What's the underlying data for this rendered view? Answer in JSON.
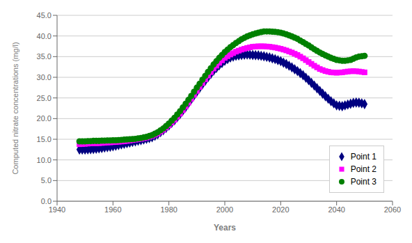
{
  "chart_data": {
    "type": "scatter",
    "title": "",
    "xlabel": "Years",
    "ylabel": "Computed nitrate concentrations (mg/l)",
    "xlim": [
      1940,
      2060
    ],
    "ylim": [
      0.0,
      45.0
    ],
    "xticks": [
      1940,
      1960,
      1980,
      2000,
      2020,
      2040,
      2060
    ],
    "yticks": [
      {
        "value": 0.0,
        "label": "0.0"
      },
      {
        "value": 5.0,
        "label": "5.0"
      },
      {
        "value": 10.0,
        "label": "10.0"
      },
      {
        "value": 15.0,
        "label": "15.0"
      },
      {
        "value": 20.0,
        "label": "20.0"
      },
      {
        "value": 25.0,
        "label": "25.0"
      },
      {
        "value": 30.0,
        "label": "30.0"
      },
      {
        "value": 35.0,
        "label": "35.0"
      },
      {
        "value": 40.0,
        "label": "40.0"
      },
      {
        "value": 45.0,
        "label": "45.0"
      }
    ],
    "grid": "y",
    "legend": "lower right",
    "x": [
      1948,
      1949,
      1950,
      1951,
      1952,
      1953,
      1954,
      1955,
      1956,
      1957,
      1958,
      1959,
      1960,
      1961,
      1962,
      1963,
      1964,
      1965,
      1966,
      1967,
      1968,
      1969,
      1970,
      1971,
      1972,
      1973,
      1974,
      1975,
      1976,
      1977,
      1978,
      1979,
      1980,
      1981,
      1982,
      1983,
      1984,
      1985,
      1986,
      1987,
      1988,
      1989,
      1990,
      1991,
      1992,
      1993,
      1994,
      1995,
      1996,
      1997,
      1998,
      1999,
      2000,
      2001,
      2002,
      2003,
      2004,
      2005,
      2006,
      2007,
      2008,
      2009,
      2010,
      2011,
      2012,
      2013,
      2014,
      2015,
      2016,
      2017,
      2018,
      2019,
      2020,
      2021,
      2022,
      2023,
      2024,
      2025,
      2026,
      2027,
      2028,
      2029,
      2030,
      2031,
      2032,
      2033,
      2034,
      2035,
      2036,
      2037,
      2038,
      2039,
      2040,
      2041,
      2042,
      2043,
      2044,
      2045,
      2046,
      2047,
      2048,
      2049,
      2050
    ],
    "series": [
      {
        "name": "Point 1",
        "color": "#000080",
        "marker": "diamond",
        "values": [
          12.5,
          12.5,
          12.5,
          12.55,
          12.6,
          12.65,
          12.7,
          12.8,
          12.9,
          13.0,
          13.1,
          13.2,
          13.3,
          13.45,
          13.6,
          13.75,
          13.9,
          14.05,
          14.2,
          14.35,
          14.5,
          14.65,
          14.8,
          14.95,
          15.1,
          15.3,
          15.5,
          15.85,
          16.2,
          16.7,
          17.2,
          17.75,
          18.3,
          18.95,
          19.6,
          20.35,
          21.1,
          21.95,
          22.8,
          23.75,
          24.7,
          25.6,
          26.5,
          27.4,
          28.3,
          29.15,
          30.0,
          30.8,
          31.6,
          32.25,
          32.9,
          33.45,
          34.0,
          34.4,
          34.8,
          35.0,
          35.2,
          35.3,
          35.4,
          35.45,
          35.5,
          35.45,
          35.4,
          35.35,
          35.3,
          35.2,
          35.1,
          34.95,
          34.8,
          34.6,
          34.4,
          34.15,
          33.9,
          33.55,
          33.2,
          32.8,
          32.4,
          31.95,
          31.5,
          31.0,
          30.5,
          29.9,
          29.3,
          28.65,
          28.0,
          27.35,
          26.7,
          26.05,
          25.4,
          24.8,
          24.2,
          23.7,
          23.2,
          23.1,
          23.0,
          23.2,
          23.4,
          23.6,
          23.8,
          23.9,
          23.85,
          23.7,
          23.5
        ]
      },
      {
        "name": "Point 2",
        "color": "#FF00FF",
        "marker": "square",
        "values": [
          13.8,
          13.85,
          13.9,
          13.95,
          14.0,
          14.0,
          14.0,
          14.05,
          14.1,
          14.15,
          14.2,
          14.25,
          14.3,
          14.35,
          14.4,
          14.45,
          14.5,
          14.6,
          14.7,
          14.8,
          14.9,
          15.0,
          15.1,
          15.25,
          15.4,
          15.6,
          15.8,
          16.1,
          16.4,
          16.85,
          17.3,
          17.85,
          18.4,
          19.05,
          19.7,
          20.45,
          21.2,
          22.05,
          22.9,
          23.85,
          24.8,
          25.75,
          26.7,
          27.65,
          28.6,
          29.5,
          30.4,
          31.25,
          32.1,
          32.8,
          33.5,
          34.1,
          34.7,
          35.1,
          35.5,
          35.85,
          36.2,
          36.45,
          36.7,
          36.9,
          37.1,
          37.25,
          37.4,
          37.45,
          37.5,
          37.5,
          37.5,
          37.45,
          37.4,
          37.3,
          37.2,
          37.05,
          36.9,
          36.7,
          36.5,
          36.25,
          36.0,
          35.7,
          35.4,
          35.0,
          34.6,
          34.15,
          33.7,
          33.25,
          32.8,
          32.4,
          32.0,
          31.75,
          31.5,
          31.35,
          31.2,
          31.15,
          31.1,
          31.15,
          31.2,
          31.3,
          31.4,
          31.45,
          31.5,
          31.45,
          31.4,
          31.3,
          31.2
        ]
      },
      {
        "name": "Point 3",
        "color": "#008000",
        "marker": "circle",
        "values": [
          14.5,
          14.5,
          14.5,
          14.55,
          14.55,
          14.6,
          14.6,
          14.6,
          14.65,
          14.65,
          14.7,
          14.7,
          14.75,
          14.75,
          14.8,
          14.85,
          14.9,
          14.95,
          15.0,
          15.05,
          15.1,
          15.2,
          15.3,
          15.45,
          15.6,
          15.8,
          16.0,
          16.35,
          16.7,
          17.15,
          17.6,
          18.2,
          18.8,
          19.5,
          20.2,
          21.0,
          21.8,
          22.7,
          23.6,
          24.55,
          25.5,
          26.5,
          27.5,
          28.45,
          29.4,
          30.35,
          31.3,
          32.2,
          33.1,
          33.9,
          34.7,
          35.4,
          36.1,
          36.7,
          37.3,
          37.8,
          38.3,
          38.75,
          39.2,
          39.55,
          39.9,
          40.15,
          40.4,
          40.6,
          40.8,
          40.95,
          41.1,
          41.1,
          41.1,
          41.05,
          41.0,
          40.9,
          40.8,
          40.6,
          40.4,
          40.15,
          39.9,
          39.6,
          39.3,
          38.9,
          38.5,
          38.1,
          37.7,
          37.25,
          36.8,
          36.4,
          36.0,
          35.65,
          35.3,
          35.0,
          34.7,
          34.45,
          34.2,
          34.1,
          34.0,
          34.0,
          34.1,
          34.2,
          34.5,
          34.8,
          35.0,
          35.1,
          35.2
        ]
      }
    ]
  }
}
